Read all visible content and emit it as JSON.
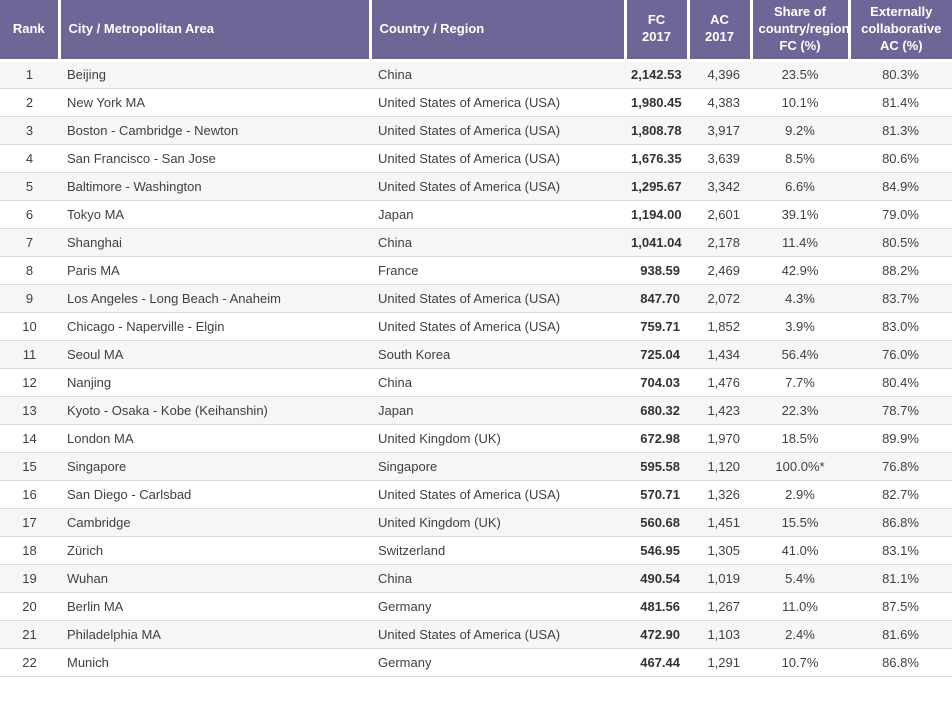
{
  "accent_colors": {
    "header_background": "#6f6698",
    "header_text": "#ffffff",
    "row_stripe": "#f6f6f6",
    "row_border": "#dcdcdc",
    "body_text": "#404040"
  },
  "chart_data": {
    "type": "table",
    "columns": [
      {
        "key": "rank",
        "label": "Rank"
      },
      {
        "key": "city",
        "label": "City / Metropolitan Area"
      },
      {
        "key": "country",
        "label": "Country / Region"
      },
      {
        "key": "fc_2017",
        "label": "FC 2017"
      },
      {
        "key": "ac_2017",
        "label": "AC 2017"
      },
      {
        "key": "share_fc",
        "label": "Share of country/region FC (%)"
      },
      {
        "key": "ext_ac",
        "label": "Externally collaborative AC (%)"
      }
    ],
    "rows": [
      [
        "1",
        "Beijing",
        "China",
        "2,142.53",
        "4,396",
        "23.5%",
        "80.3%"
      ],
      [
        "2",
        "New York MA",
        "United States of America (USA)",
        "1,980.45",
        "4,383",
        "10.1%",
        "81.4%"
      ],
      [
        "3",
        "Boston - Cambridge - Newton",
        "United States of America (USA)",
        "1,808.78",
        "3,917",
        "9.2%",
        "81.3%"
      ],
      [
        "4",
        "San Francisco - San Jose",
        "United States of America (USA)",
        "1,676.35",
        "3,639",
        "8.5%",
        "80.6%"
      ],
      [
        "5",
        "Baltimore - Washington",
        "United States of America (USA)",
        "1,295.67",
        "3,342",
        "6.6%",
        "84.9%"
      ],
      [
        "6",
        "Tokyo MA",
        "Japan",
        "1,194.00",
        "2,601",
        "39.1%",
        "79.0%"
      ],
      [
        "7",
        "Shanghai",
        "China",
        "1,041.04",
        "2,178",
        "11.4%",
        "80.5%"
      ],
      [
        "8",
        "Paris MA",
        "France",
        "938.59",
        "2,469",
        "42.9%",
        "88.2%"
      ],
      [
        "9",
        "Los Angeles - Long Beach - Anaheim",
        "United States of America (USA)",
        "847.70",
        "2,072",
        "4.3%",
        "83.7%"
      ],
      [
        "10",
        "Chicago - Naperville - Elgin",
        "United States of America (USA)",
        "759.71",
        "1,852",
        "3.9%",
        "83.0%"
      ],
      [
        "11",
        "Seoul MA",
        "South Korea",
        "725.04",
        "1,434",
        "56.4%",
        "76.0%"
      ],
      [
        "12",
        "Nanjing",
        "China",
        "704.03",
        "1,476",
        "7.7%",
        "80.4%"
      ],
      [
        "13",
        "Kyoto - Osaka - Kobe (Keihanshin)",
        "Japan",
        "680.32",
        "1,423",
        "22.3%",
        "78.7%"
      ],
      [
        "14",
        "London MA",
        "United Kingdom (UK)",
        "672.98",
        "1,970",
        "18.5%",
        "89.9%"
      ],
      [
        "15",
        "Singapore",
        "Singapore",
        "595.58",
        "1,120",
        "100.0%*",
        "76.8%"
      ],
      [
        "16",
        "San Diego - Carlsbad",
        "United States of America (USA)",
        "570.71",
        "1,326",
        "2.9%",
        "82.7%"
      ],
      [
        "17",
        "Cambridge",
        "United Kingdom (UK)",
        "560.68",
        "1,451",
        "15.5%",
        "86.8%"
      ],
      [
        "18",
        "Zürich",
        "Switzerland",
        "546.95",
        "1,305",
        "41.0%",
        "83.1%"
      ],
      [
        "19",
        "Wuhan",
        "China",
        "490.54",
        "1,019",
        "5.4%",
        "81.1%"
      ],
      [
        "20",
        "Berlin MA",
        "Germany",
        "481.56",
        "1,267",
        "11.0%",
        "87.5%"
      ],
      [
        "21",
        "Philadelphia MA",
        "United States of America (USA)",
        "472.90",
        "1,103",
        "2.4%",
        "81.6%"
      ],
      [
        "22",
        "Munich",
        "Germany",
        "467.44",
        "1,291",
        "10.7%",
        "86.8%"
      ]
    ]
  }
}
